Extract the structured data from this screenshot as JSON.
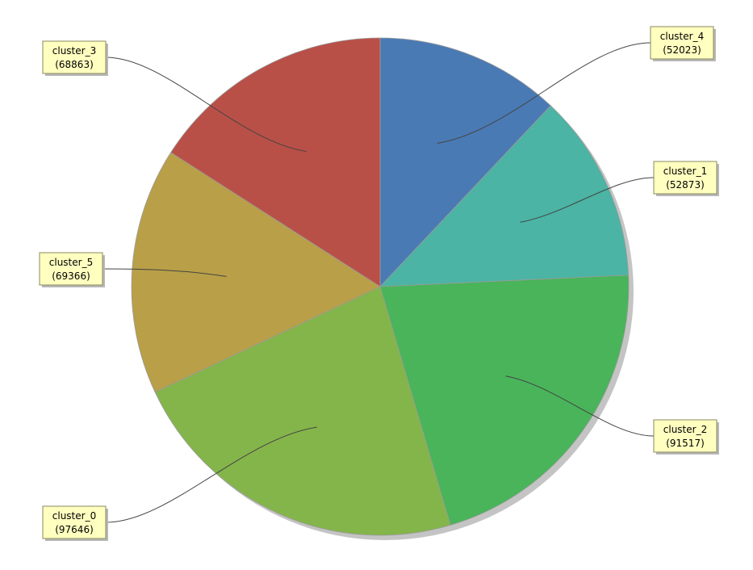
{
  "chart_data": {
    "type": "pie",
    "slices": [
      {
        "label": "cluster_4",
        "value": 52023,
        "value_text": "(52023)",
        "color": "#4a7ab4"
      },
      {
        "label": "cluster_1",
        "value": 52873,
        "value_text": "(52873)",
        "color": "#4bb4a4"
      },
      {
        "label": "cluster_2",
        "value": 91517,
        "value_text": "(91517)",
        "color": "#49b45a"
      },
      {
        "label": "cluster_0",
        "value": 97646,
        "value_text": "(97646)",
        "color": "#84b54a"
      },
      {
        "label": "cluster_5",
        "value": 69366,
        "value_text": "(69366)",
        "color": "#b99f47"
      },
      {
        "label": "cluster_3",
        "value": 68863,
        "value_text": "(68863)",
        "color": "#b95048"
      }
    ],
    "start": "12 o'clock",
    "direction": "clockwise",
    "labels": "callout boxes with leader lines",
    "shadow": true
  }
}
